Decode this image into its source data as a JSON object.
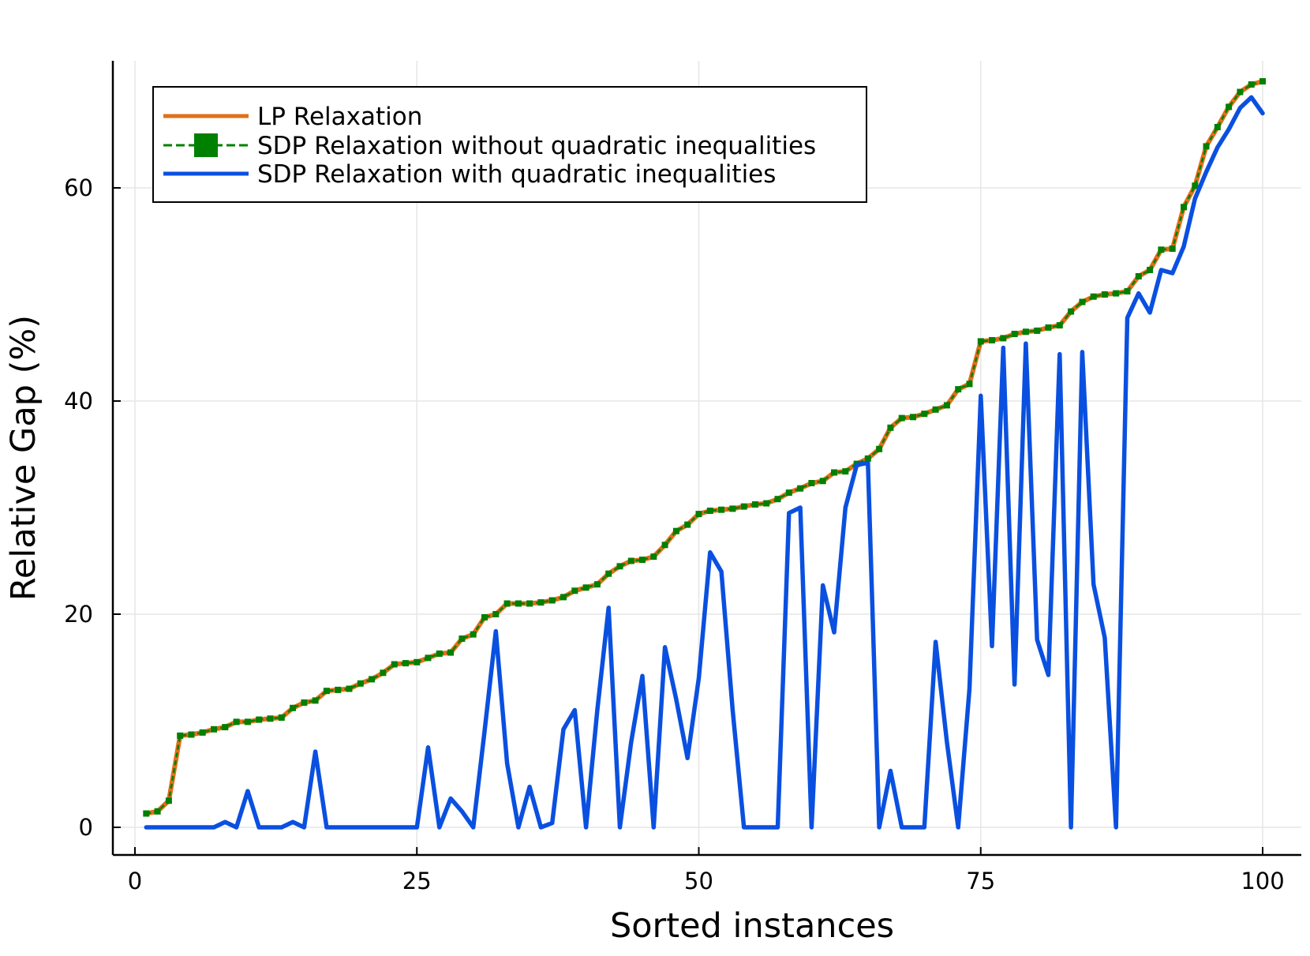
{
  "chart_data": {
    "type": "line",
    "title": "",
    "xlabel": "Sorted instances",
    "ylabel": "Relative Gap (%)",
    "xlim": [
      -2,
      103
    ],
    "ylim": [
      -2,
      72
    ],
    "xticks": [
      0,
      25,
      50,
      75,
      100
    ],
    "yticks": [
      0,
      20,
      40,
      60
    ],
    "grid": true,
    "legend_position": "top-left",
    "x": [
      1,
      2,
      3,
      4,
      5,
      6,
      7,
      8,
      9,
      10,
      11,
      12,
      13,
      14,
      15,
      16,
      17,
      18,
      19,
      20,
      21,
      22,
      23,
      24,
      25,
      26,
      27,
      28,
      29,
      30,
      31,
      32,
      33,
      34,
      35,
      36,
      37,
      38,
      39,
      40,
      41,
      42,
      43,
      44,
      45,
      46,
      47,
      48,
      49,
      50,
      51,
      52,
      53,
      54,
      55,
      56,
      57,
      58,
      59,
      60,
      61,
      62,
      63,
      64,
      65,
      66,
      67,
      68,
      69,
      70,
      71,
      72,
      73,
      74,
      75,
      76,
      77,
      78,
      79,
      80,
      81,
      82,
      83,
      84,
      85,
      86,
      87,
      88,
      89,
      90,
      91,
      92,
      93,
      94,
      95,
      96,
      97,
      98,
      99,
      100
    ],
    "series": [
      {
        "name": "LP Relaxation",
        "color": "#e26f1a",
        "style": "solid",
        "values": [
          1.3,
          1.5,
          2.5,
          8.6,
          8.7,
          8.9,
          9.2,
          9.4,
          9.9,
          9.9,
          10.1,
          10.2,
          10.3,
          11.2,
          11.7,
          11.9,
          12.8,
          12.9,
          13.0,
          13.5,
          13.9,
          14.5,
          15.3,
          15.4,
          15.5,
          15.9,
          16.3,
          16.4,
          17.7,
          18.1,
          19.7,
          20.0,
          21.0,
          21.0,
          21.0,
          21.1,
          21.3,
          21.6,
          22.2,
          22.5,
          22.8,
          23.8,
          24.5,
          25.0,
          25.1,
          25.4,
          26.5,
          27.8,
          28.4,
          29.4,
          29.7,
          29.8,
          29.9,
          30.1,
          30.3,
          30.4,
          30.8,
          31.4,
          31.8,
          32.3,
          32.5,
          33.3,
          33.4,
          34.1,
          34.6,
          35.5,
          37.5,
          38.4,
          38.5,
          38.8,
          39.2,
          39.6,
          41.1,
          41.6,
          45.6,
          45.7,
          45.9,
          46.3,
          46.5,
          46.6,
          46.9,
          47.1,
          48.4,
          49.3,
          49.8,
          50.0,
          50.1,
          50.3,
          51.7,
          52.3,
          54.2,
          54.3,
          58.2,
          60.2,
          63.9,
          65.7,
          67.6,
          69.0,
          69.7,
          70.0
        ]
      },
      {
        "name": "SDP Relaxation without quadratic inequalities",
        "color": "#008000",
        "style": "dashed-square-markers",
        "values": [
          1.3,
          1.5,
          2.5,
          8.6,
          8.7,
          8.9,
          9.2,
          9.4,
          9.9,
          9.9,
          10.1,
          10.2,
          10.3,
          11.2,
          11.7,
          11.9,
          12.8,
          12.9,
          13.0,
          13.5,
          13.9,
          14.5,
          15.3,
          15.4,
          15.5,
          15.9,
          16.3,
          16.4,
          17.7,
          18.1,
          19.7,
          20.0,
          21.0,
          21.0,
          21.0,
          21.1,
          21.3,
          21.6,
          22.2,
          22.5,
          22.8,
          23.8,
          24.5,
          25.0,
          25.1,
          25.4,
          26.5,
          27.8,
          28.4,
          29.4,
          29.7,
          29.8,
          29.9,
          30.1,
          30.3,
          30.4,
          30.8,
          31.4,
          31.8,
          32.3,
          32.5,
          33.3,
          33.4,
          34.1,
          34.6,
          35.5,
          37.5,
          38.4,
          38.5,
          38.8,
          39.2,
          39.6,
          41.1,
          41.6,
          45.6,
          45.7,
          45.9,
          46.3,
          46.5,
          46.6,
          46.9,
          47.1,
          48.4,
          49.3,
          49.8,
          50.0,
          50.1,
          50.3,
          51.7,
          52.3,
          54.2,
          54.3,
          58.2,
          60.2,
          63.9,
          65.7,
          67.6,
          69.0,
          69.7,
          70.0
        ]
      },
      {
        "name": "SDP Relaxation with quadratic inequalities",
        "color": "#0a50e0",
        "style": "solid",
        "values": [
          0,
          0,
          0,
          0,
          0,
          0,
          0,
          0.5,
          0,
          3.4,
          0,
          0,
          0,
          0.5,
          0,
          7.1,
          0,
          0,
          0,
          0,
          0,
          0,
          0,
          0,
          0,
          7.5,
          0,
          2.7,
          1.5,
          0,
          9,
          18.4,
          6,
          0,
          3.8,
          0,
          0.4,
          9.2,
          11,
          0,
          11,
          20.6,
          0,
          8,
          14.2,
          0,
          16.9,
          12,
          6.5,
          14,
          25.8,
          24,
          11,
          0,
          0,
          0,
          0,
          29.5,
          30,
          0,
          22.7,
          18.3,
          30,
          34,
          34.2,
          0,
          5.3,
          0,
          0,
          0,
          17.4,
          8,
          0,
          13,
          40.5,
          17,
          45,
          13.4,
          45.4,
          17.6,
          14.3,
          44.4,
          0,
          44.6,
          22.8,
          17.8,
          0,
          47.8,
          50.1,
          48.3,
          52.3,
          52,
          54.5,
          59,
          61.5,
          63.8,
          65.5,
          67.5,
          68.5,
          67
        ]
      }
    ]
  }
}
